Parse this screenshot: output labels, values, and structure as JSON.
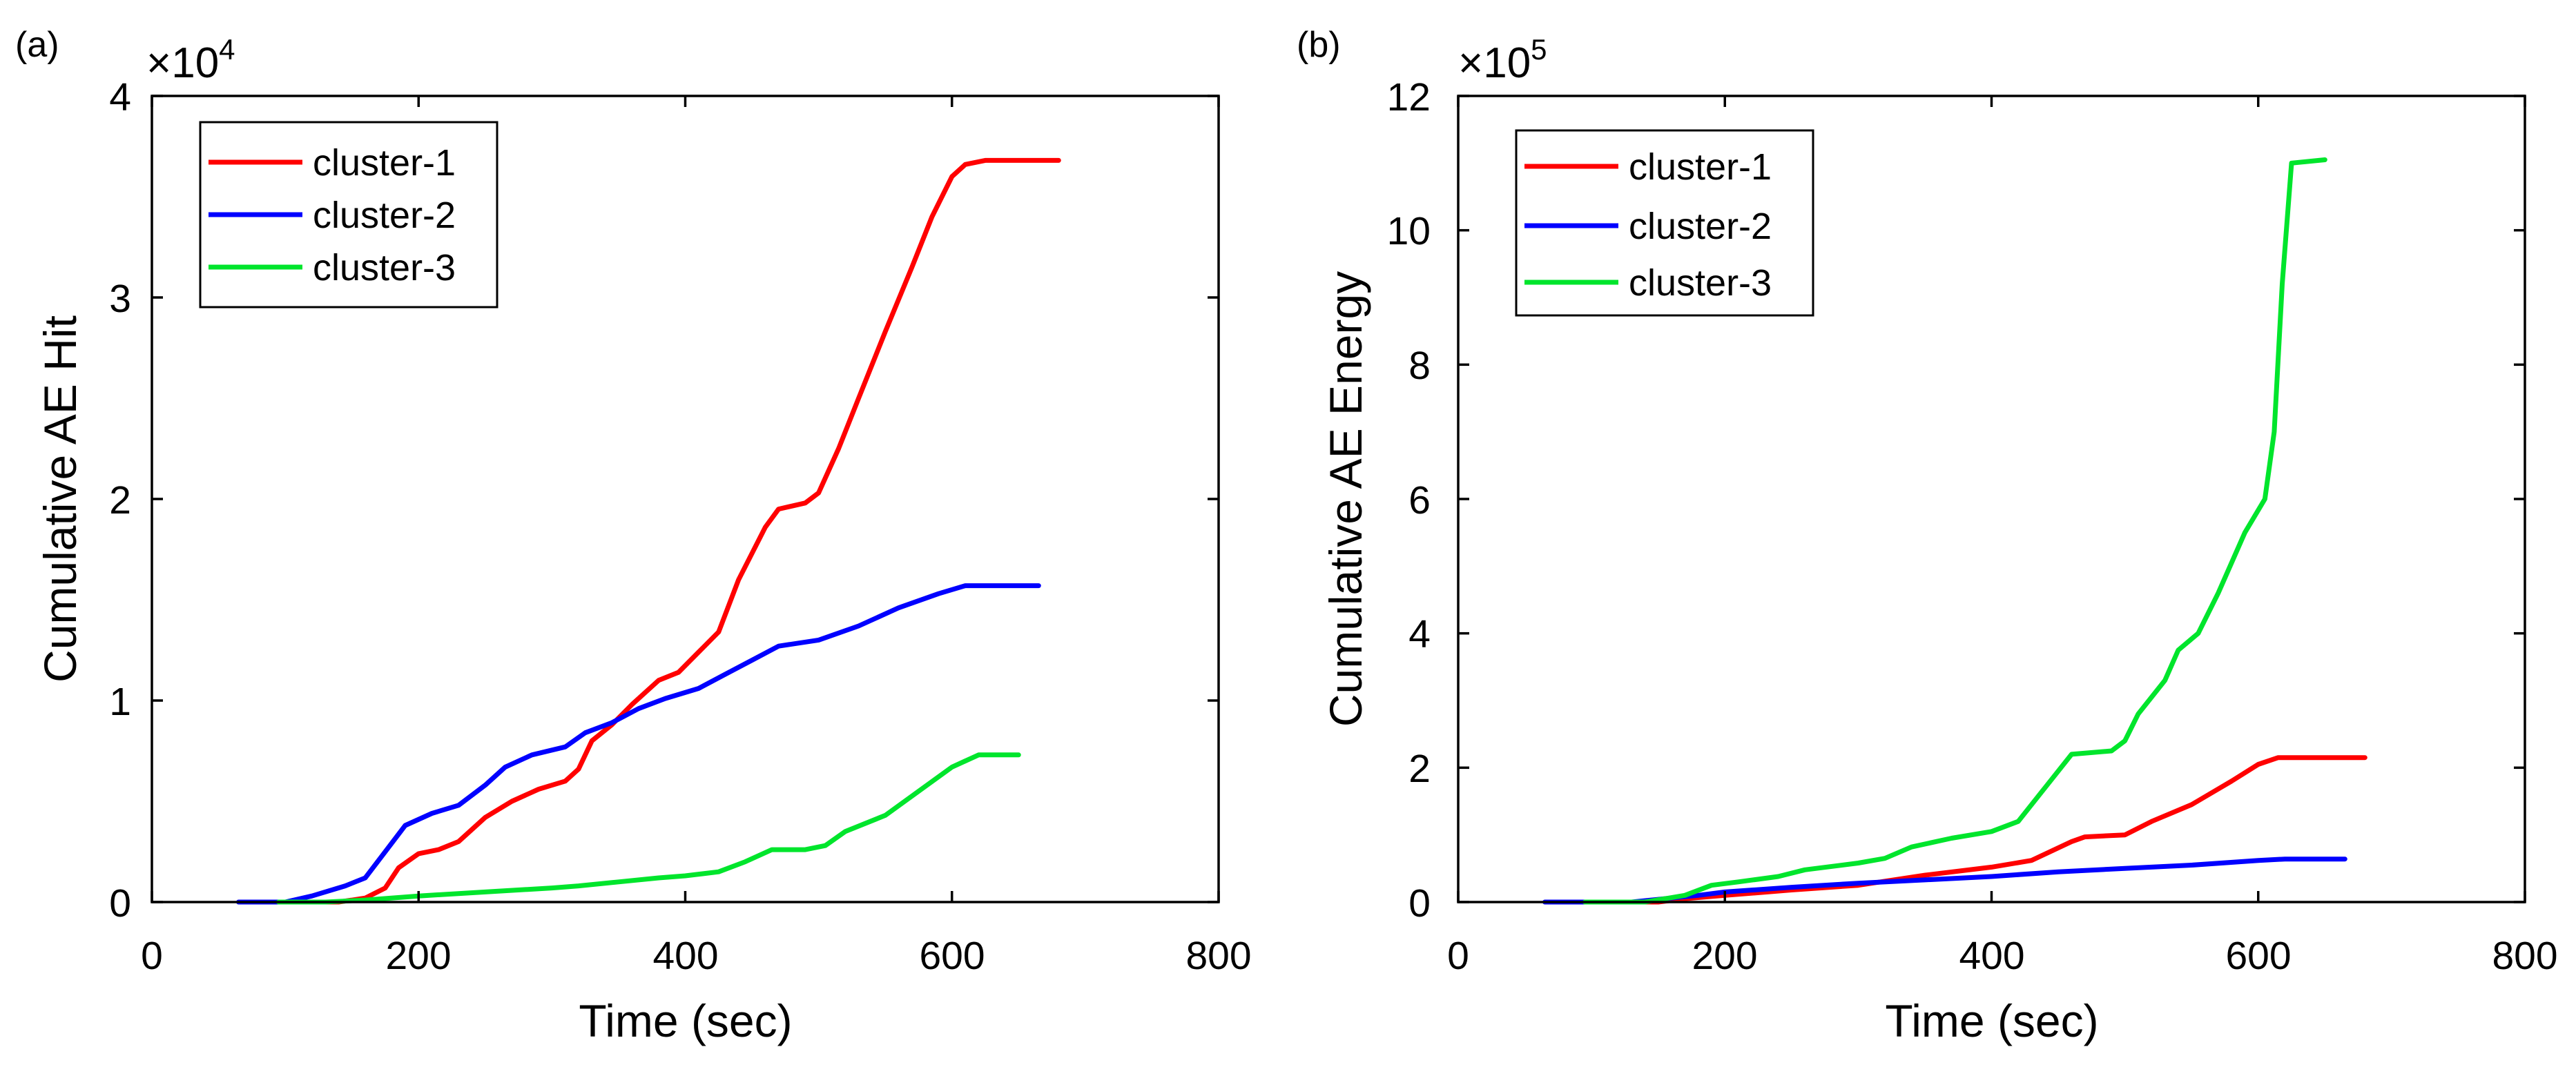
{
  "chart_data": [
    {
      "type": "line",
      "panel_label": "(a)",
      "title": "",
      "xlabel": "Time (sec)",
      "ylabel": "Cumulative AE Hit",
      "xlim": [
        0,
        800
      ],
      "ylim": [
        0,
        40000
      ],
      "xticks": [
        0,
        200,
        400,
        600,
        800
      ],
      "xtick_labels": [
        "0",
        "200",
        "400",
        "600",
        "800"
      ],
      "yticks": [
        0,
        10000,
        20000,
        30000,
        40000
      ],
      "ytick_labels": [
        "0",
        "1",
        "2",
        "3",
        "4"
      ],
      "y_multiplier": "×10",
      "y_exponent": "4",
      "grid": false,
      "legend_position": "top-left",
      "series": [
        {
          "name": "cluster-1",
          "color": "#ff0000",
          "points": [
            [
              100,
              0
            ],
            [
              140,
              0
            ],
            [
              160,
              200
            ],
            [
              175,
              700
            ],
            [
              185,
              1700
            ],
            [
              200,
              2400
            ],
            [
              215,
              2600
            ],
            [
              230,
              3000
            ],
            [
              250,
              4200
            ],
            [
              270,
              5000
            ],
            [
              290,
              5600
            ],
            [
              310,
              6000
            ],
            [
              320,
              6600
            ],
            [
              330,
              8000
            ],
            [
              345,
              8800
            ],
            [
              360,
              9800
            ],
            [
              380,
              11000
            ],
            [
              395,
              11400
            ],
            [
              410,
              12400
            ],
            [
              425,
              13400
            ],
            [
              440,
              16000
            ],
            [
              460,
              18600
            ],
            [
              470,
              19500
            ],
            [
              490,
              19800
            ],
            [
              500,
              20300
            ],
            [
              515,
              22500
            ],
            [
              530,
              25000
            ],
            [
              550,
              28300
            ],
            [
              570,
              31500
            ],
            [
              585,
              34000
            ],
            [
              600,
              36000
            ],
            [
              610,
              36600
            ],
            [
              625,
              36800
            ],
            [
              680,
              36800
            ]
          ]
        },
        {
          "name": "cluster-2",
          "color": "#0000ff",
          "points": [
            [
              65,
              0
            ],
            [
              100,
              0
            ],
            [
              120,
              300
            ],
            [
              145,
              800
            ],
            [
              160,
              1200
            ],
            [
              175,
              2500
            ],
            [
              190,
              3800
            ],
            [
              210,
              4400
            ],
            [
              230,
              4800
            ],
            [
              250,
              5800
            ],
            [
              265,
              6700
            ],
            [
              285,
              7300
            ],
            [
              310,
              7700
            ],
            [
              325,
              8400
            ],
            [
              345,
              8900
            ],
            [
              365,
              9600
            ],
            [
              385,
              10100
            ],
            [
              410,
              10600
            ],
            [
              430,
              11300
            ],
            [
              450,
              12000
            ],
            [
              470,
              12700
            ],
            [
              500,
              13000
            ],
            [
              530,
              13700
            ],
            [
              560,
              14600
            ],
            [
              590,
              15300
            ],
            [
              610,
              15700
            ],
            [
              665,
              15700
            ]
          ]
        },
        {
          "name": "cluster-3",
          "color": "#00e52c",
          "points": [
            [
              95,
              0
            ],
            [
              130,
              0
            ],
            [
              160,
              100
            ],
            [
              200,
              300
            ],
            [
              250,
              500
            ],
            [
              300,
              700
            ],
            [
              320,
              800
            ],
            [
              350,
              1000
            ],
            [
              380,
              1200
            ],
            [
              400,
              1300
            ],
            [
              425,
              1500
            ],
            [
              445,
              2000
            ],
            [
              465,
              2600
            ],
            [
              490,
              2600
            ],
            [
              505,
              2800
            ],
            [
              520,
              3500
            ],
            [
              550,
              4300
            ],
            [
              575,
              5500
            ],
            [
              600,
              6700
            ],
            [
              620,
              7300
            ],
            [
              650,
              7300
            ]
          ]
        }
      ]
    },
    {
      "type": "line",
      "panel_label": "(b)",
      "title": "",
      "xlabel": "Time (sec)",
      "ylabel": "Cumulative AE Energy",
      "xlim": [
        0,
        800
      ],
      "ylim": [
        0,
        1200000
      ],
      "xticks": [
        0,
        200,
        400,
        600,
        800
      ],
      "xtick_labels": [
        "0",
        "200",
        "400",
        "600",
        "800"
      ],
      "yticks": [
        0,
        200000,
        400000,
        600000,
        800000,
        1000000,
        1200000
      ],
      "ytick_labels": [
        "0",
        "2",
        "4",
        "6",
        "8",
        "10",
        "12"
      ],
      "y_multiplier": "×10",
      "y_exponent": "5",
      "grid": false,
      "legend_position": "top-left",
      "series": [
        {
          "name": "cluster-1",
          "color": "#ff0000",
          "points": [
            [
              95,
              0
            ],
            [
              150,
              0
            ],
            [
              170,
              5000
            ],
            [
              200,
              10000
            ],
            [
              250,
              18000
            ],
            [
              300,
              25000
            ],
            [
              350,
              40000
            ],
            [
              400,
              52000
            ],
            [
              430,
              62000
            ],
            [
              460,
              90000
            ],
            [
              470,
              97000
            ],
            [
              500,
              100000
            ],
            [
              520,
              120000
            ],
            [
              550,
              145000
            ],
            [
              580,
              180000
            ],
            [
              600,
              205000
            ],
            [
              615,
              215000
            ],
            [
              680,
              215000
            ]
          ]
        },
        {
          "name": "cluster-2",
          "color": "#0000ff",
          "points": [
            [
              65,
              0
            ],
            [
              130,
              0
            ],
            [
              180,
              10000
            ],
            [
              200,
              15000
            ],
            [
              250,
              22000
            ],
            [
              300,
              28000
            ],
            [
              350,
              33000
            ],
            [
              400,
              38000
            ],
            [
              450,
              45000
            ],
            [
              500,
              50000
            ],
            [
              550,
              55000
            ],
            [
              600,
              62000
            ],
            [
              620,
              64000
            ],
            [
              665,
              64000
            ]
          ]
        },
        {
          "name": "cluster-3",
          "color": "#00e52c",
          "points": [
            [
              95,
              0
            ],
            [
              140,
              0
            ],
            [
              170,
              10000
            ],
            [
              190,
              25000
            ],
            [
              210,
              30000
            ],
            [
              240,
              38000
            ],
            [
              260,
              48000
            ],
            [
              300,
              58000
            ],
            [
              320,
              65000
            ],
            [
              340,
              82000
            ],
            [
              370,
              95000
            ],
            [
              400,
              105000
            ],
            [
              420,
              120000
            ],
            [
              440,
              170000
            ],
            [
              460,
              220000
            ],
            [
              490,
              225000
            ],
            [
              500,
              240000
            ],
            [
              510,
              280000
            ],
            [
              530,
              330000
            ],
            [
              540,
              375000
            ],
            [
              555,
              400000
            ],
            [
              570,
              460000
            ],
            [
              590,
              550000
            ],
            [
              605,
              600000
            ],
            [
              612,
              700000
            ],
            [
              618,
              920000
            ],
            [
              625,
              1100000
            ],
            [
              650,
              1105000
            ]
          ]
        }
      ]
    }
  ]
}
